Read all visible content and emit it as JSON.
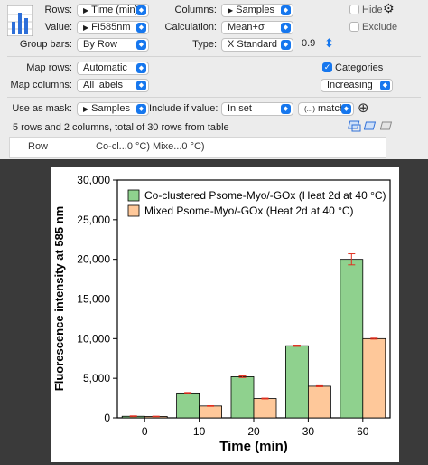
{
  "panel": {
    "rows_label": "Rows:",
    "rows_value": "Time (min)",
    "columns_label": "Columns:",
    "columns_value": "Samples",
    "hide_label": "Hide",
    "value_label": "Value:",
    "value_value": "FI585nm",
    "calculation_label": "Calculation:",
    "calculation_value": "Mean+σ",
    "exclude_label": "Exclude",
    "group_bars_label": "Group bars:",
    "group_bars_value": "By Row",
    "type_label": "Type:",
    "type_value": "X Standard",
    "type_number": "0.9",
    "map_rows_label": "Map rows:",
    "map_rows_value": "Automatic",
    "categories_label": "Categories",
    "map_columns_label": "Map columns:",
    "map_columns_value": "All labels",
    "sort_value": "Increasing",
    "mask_label": "Use as mask:",
    "mask_value": "Samples",
    "include_label": "Include if value:",
    "include_value": "In set",
    "match_value": "match",
    "match_icon": "(...)",
    "status": "5 rows and 2 columns, total of 30 rows from table",
    "table_header": [
      "Row",
      "Co-cl...0 °C)",
      "Mixe...0 °C)"
    ]
  },
  "chart_data": {
    "type": "bar",
    "categories": [
      "0",
      "10",
      "20",
      "30",
      "60"
    ],
    "series": [
      {
        "name": "Co-clustered Psome-Myo/-GOx (Heat 2d at 40 °C)",
        "values": [
          200,
          3150,
          5200,
          9100,
          20000
        ],
        "errors": [
          50,
          60,
          100,
          80,
          700
        ],
        "color": "#8fd18e"
      },
      {
        "name": "Mixed Psome-Myo/-GOx (Heat 2d at 40 °C)",
        "values": [
          180,
          1500,
          2450,
          4000,
          10000
        ],
        "errors": [
          30,
          40,
          50,
          60,
          60
        ],
        "color": "#fec89a"
      }
    ],
    "xlabel": "Time (min)",
    "ylabel": "Fluorescence intensity at 585 nm",
    "ylim": [
      0,
      30000
    ],
    "yticks": [
      "0",
      "5,000",
      "10,000",
      "15,000",
      "20,000",
      "25,000",
      "30,000"
    ],
    "legend": "top-left",
    "error_color": "#e03020"
  }
}
